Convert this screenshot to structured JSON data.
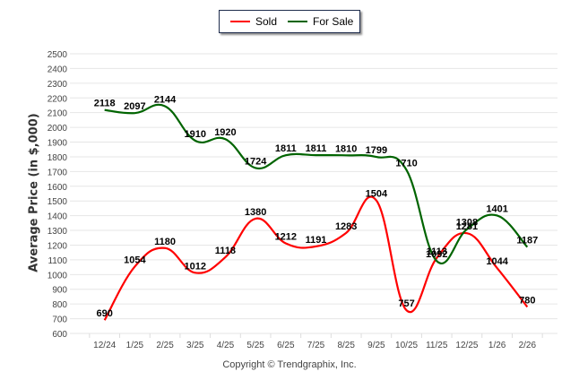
{
  "chart_data": {
    "type": "line",
    "title": "",
    "xlabel": "",
    "ylabel": "Average Price (in $,000)",
    "categories": [
      "12/24",
      "1/25",
      "2/25",
      "3/25",
      "4/25",
      "5/25",
      "6/25",
      "7/25",
      "8/25",
      "9/25",
      "10/25",
      "11/25",
      "12/25",
      "1/26",
      "2/26"
    ],
    "ylim": [
      600,
      2500
    ],
    "yticks": [
      600,
      700,
      800,
      900,
      1000,
      1100,
      1200,
      1300,
      1400,
      1500,
      1600,
      1700,
      1800,
      1900,
      2000,
      2100,
      2200,
      2300,
      2400,
      2500
    ],
    "grid": true,
    "legend_position": "top-center",
    "series": [
      {
        "name": "Sold",
        "color": "#ff0000",
        "values": [
          690,
          1054,
          1180,
          1012,
          1118,
          1380,
          1212,
          1191,
          1283,
          1504,
          757,
          1113,
          1281,
          1044,
          780
        ]
      },
      {
        "name": "For Sale",
        "color": "#006400",
        "values": [
          2118,
          2097,
          2144,
          1910,
          1920,
          1724,
          1811,
          1811,
          1810,
          1799,
          1710,
          1092,
          1308,
          1401,
          1187
        ]
      }
    ]
  },
  "legend": {
    "sold": "Sold",
    "for_sale": "For Sale"
  },
  "copyright": "Copyright © Trendgraphix, Inc."
}
